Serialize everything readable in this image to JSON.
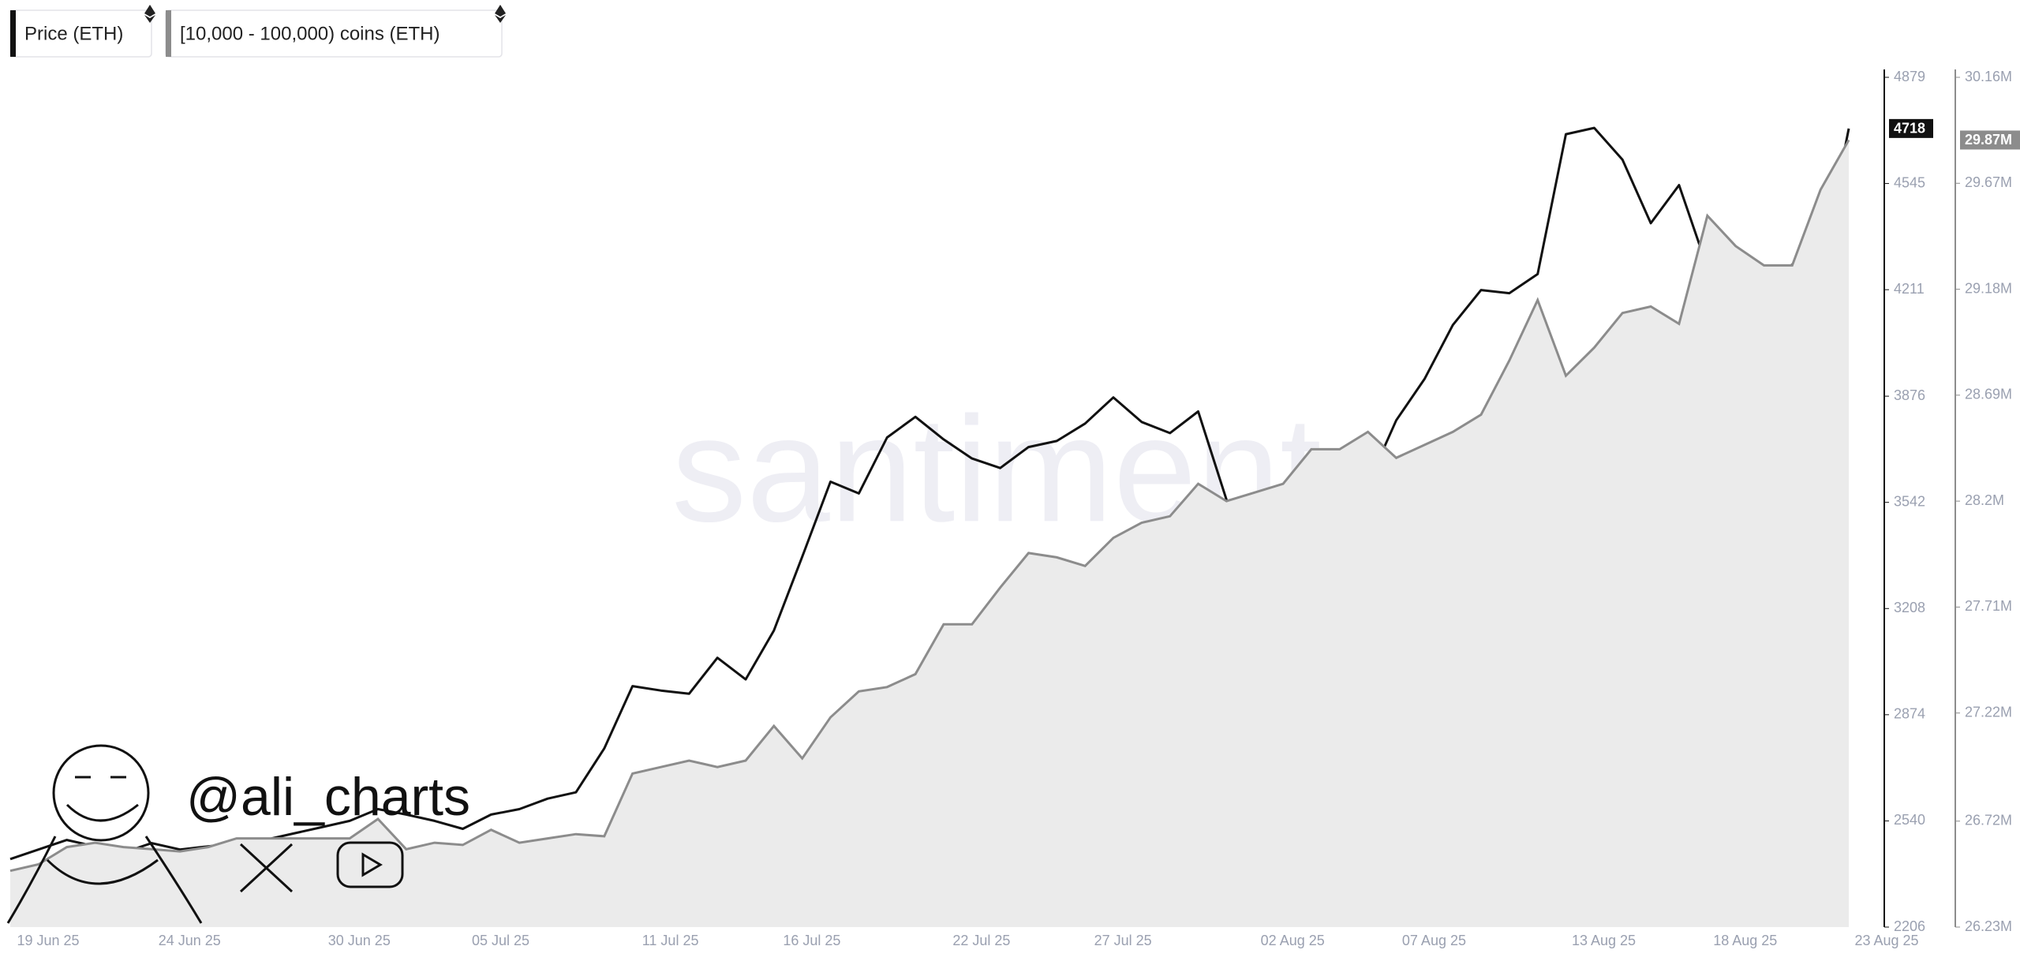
{
  "chart_data": {
    "type": "line",
    "watermark": "santiment",
    "annotation": "@ali_charts",
    "x": [
      "19 Jun 25",
      null,
      null,
      null,
      null,
      "24 Jun 25",
      null,
      null,
      null,
      null,
      null,
      "30 Jun 25",
      null,
      null,
      null,
      null,
      "05 Jul 25",
      null,
      null,
      null,
      null,
      null,
      "11 Jul 25",
      null,
      null,
      null,
      null,
      "16 Jul 25",
      null,
      null,
      null,
      null,
      null,
      "22 Jul 25",
      null,
      null,
      null,
      null,
      "27 Jul 25",
      null,
      null,
      null,
      null,
      null,
      "02 Aug 25",
      null,
      null,
      null,
      null,
      "07 Aug 25",
      null,
      null,
      null,
      null,
      null,
      "13 Aug 25",
      null,
      null,
      null,
      null,
      "18 Aug 25",
      null,
      null,
      null,
      null,
      "23 Aug 25"
    ],
    "ylim": [
      2206,
      4879
    ],
    "yticks": [
      2206,
      2540,
      2874,
      3208,
      3542,
      3876,
      4211,
      4545,
      4879
    ],
    "y2lim": [
      26230000,
      30160000
    ],
    "y2ticks": [
      {
        "value": 26230000,
        "label": "26.23M"
      },
      {
        "value": 26720000,
        "label": "26.72M"
      },
      {
        "value": 27220000,
        "label": "27.22M"
      },
      {
        "value": 27710000,
        "label": "27.71M"
      },
      {
        "value": 28200000,
        "label": "28.2M"
      },
      {
        "value": 28690000,
        "label": "28.69M"
      },
      {
        "value": 29180000,
        "label": "29.18M"
      },
      {
        "value": 29670000,
        "label": "29.67M"
      },
      {
        "value": 30160000,
        "label": "30.16M"
      }
    ],
    "series": [
      {
        "name": "Price (ETH)",
        "type": "line",
        "color": "#111111",
        "axis": "y",
        "values": [
          2420,
          2450,
          2480,
          2460,
          2440,
          2470,
          2450,
          2460,
          2470,
          2480,
          2500,
          2520,
          2540,
          2577,
          2560,
          2540,
          2515,
          2560,
          2577,
          2610,
          2630,
          2768,
          2964,
          2950,
          2940,
          3053,
          2985,
          3139,
          3371,
          3607,
          3570,
          3746,
          3811,
          3740,
          3680,
          3650,
          3716,
          3735,
          3790,
          3872,
          3795,
          3760,
          3828,
          3550,
          3420,
          3470,
          3560,
          3680,
          3600,
          3800,
          3930,
          4100,
          4210,
          4200,
          4260,
          4700,
          4720,
          4620,
          4420,
          4540,
          4280,
          4250,
          4210,
          4290,
          4270,
          4718
        ],
        "value_labels": [
          null,
          null,
          null,
          null,
          null,
          null,
          null,
          null,
          null,
          null,
          null,
          null,
          null,
          null,
          null,
          null,
          null,
          null,
          null,
          null,
          null,
          null,
          null,
          null,
          null,
          null,
          null,
          null,
          null,
          null,
          null,
          null,
          null,
          null,
          null,
          null,
          null,
          null,
          null,
          null,
          null,
          null,
          null,
          null,
          null,
          null,
          null,
          null,
          null,
          null,
          null,
          null,
          null,
          null,
          null,
          null,
          null,
          null,
          null,
          null,
          null,
          null,
          null,
          null,
          null,
          "4718"
        ]
      },
      {
        "name": "[10,000 - 100,000) coins (ETH)",
        "type": "area",
        "color": "#8c8c8c",
        "fill": "#ebebeb",
        "axis": "y2",
        "values": [
          26490000,
          26520000,
          26600000,
          26620000,
          26600000,
          26590000,
          26580000,
          26600000,
          26640000,
          26640000,
          26640000,
          26640000,
          26640000,
          26730000,
          26590000,
          26620000,
          26610000,
          26680000,
          26620000,
          26640000,
          26660000,
          26650000,
          26940000,
          26970000,
          27000000,
          26970000,
          27000000,
          27160000,
          27010000,
          27200000,
          27320000,
          27340000,
          27400000,
          27630000,
          27630000,
          27800000,
          27960000,
          27940000,
          27900000,
          28030000,
          28100000,
          28130000,
          28280000,
          28200000,
          28240000,
          28280000,
          28440000,
          28440000,
          28520000,
          28400000,
          28460000,
          28520000,
          28600000,
          28850000,
          29130000,
          28780000,
          28910000,
          29070000,
          29100000,
          29020000,
          29520000,
          29380000,
          29290000,
          29290000,
          29640000,
          29870000
        ],
        "value_labels": [
          null,
          null,
          null,
          null,
          null,
          null,
          null,
          null,
          null,
          null,
          null,
          null,
          null,
          null,
          null,
          null,
          null,
          null,
          null,
          null,
          null,
          null,
          null,
          null,
          null,
          null,
          null,
          null,
          null,
          null,
          null,
          null,
          null,
          null,
          null,
          null,
          null,
          null,
          null,
          null,
          null,
          null,
          null,
          null,
          null,
          null,
          null,
          null,
          null,
          null,
          null,
          null,
          null,
          null,
          null,
          null,
          null,
          null,
          null,
          null,
          null,
          null,
          null,
          null,
          null,
          "29.87M"
        ]
      }
    ]
  }
}
